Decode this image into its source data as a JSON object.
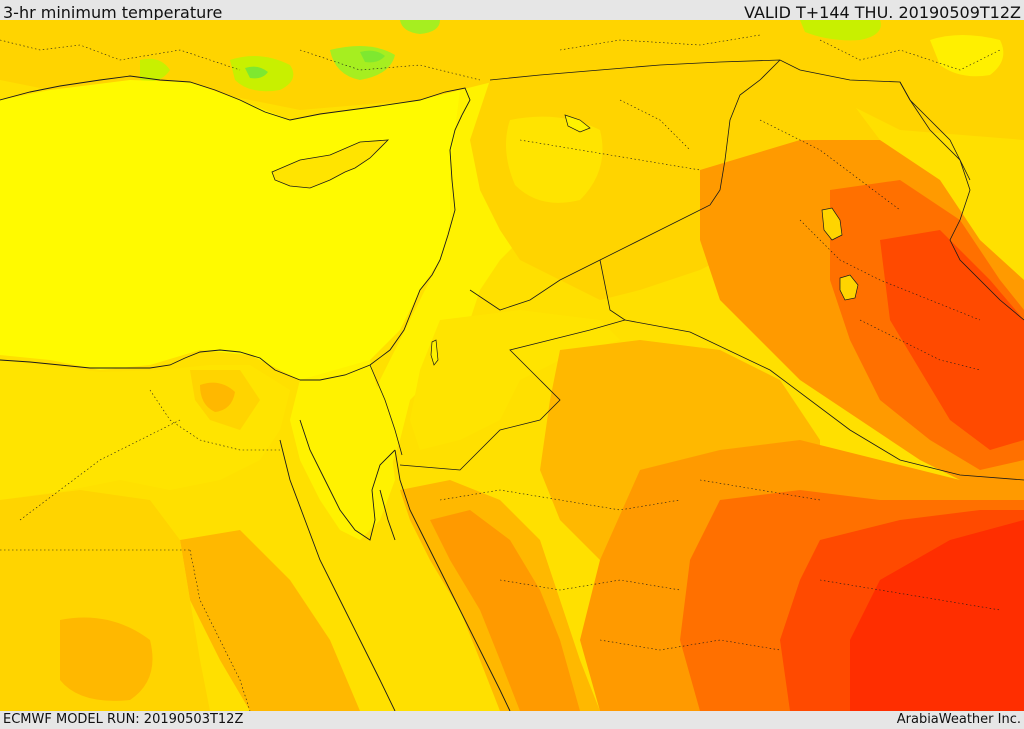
{
  "header": {
    "title": "3-hr minimum temperature",
    "valid": "VALID T+144 THU. 20190509T12Z"
  },
  "footer": {
    "model_run": "ECMWF MODEL RUN: 20190503T12Z",
    "credit": "ArabiaWeather Inc."
  },
  "colors": {
    "sea": "#fffa00",
    "cool_green": "#c8f000",
    "green_spot": "#7ee830",
    "light_yellow": "#ffe400",
    "yellow_orange": "#ffd400",
    "light_orange": "#ffb800",
    "orange": "#ff9a00",
    "dark_orange": "#ff7000",
    "red_orange": "#ff4a00",
    "red": "#ff2e00",
    "coast": "#1a1a1a"
  }
}
